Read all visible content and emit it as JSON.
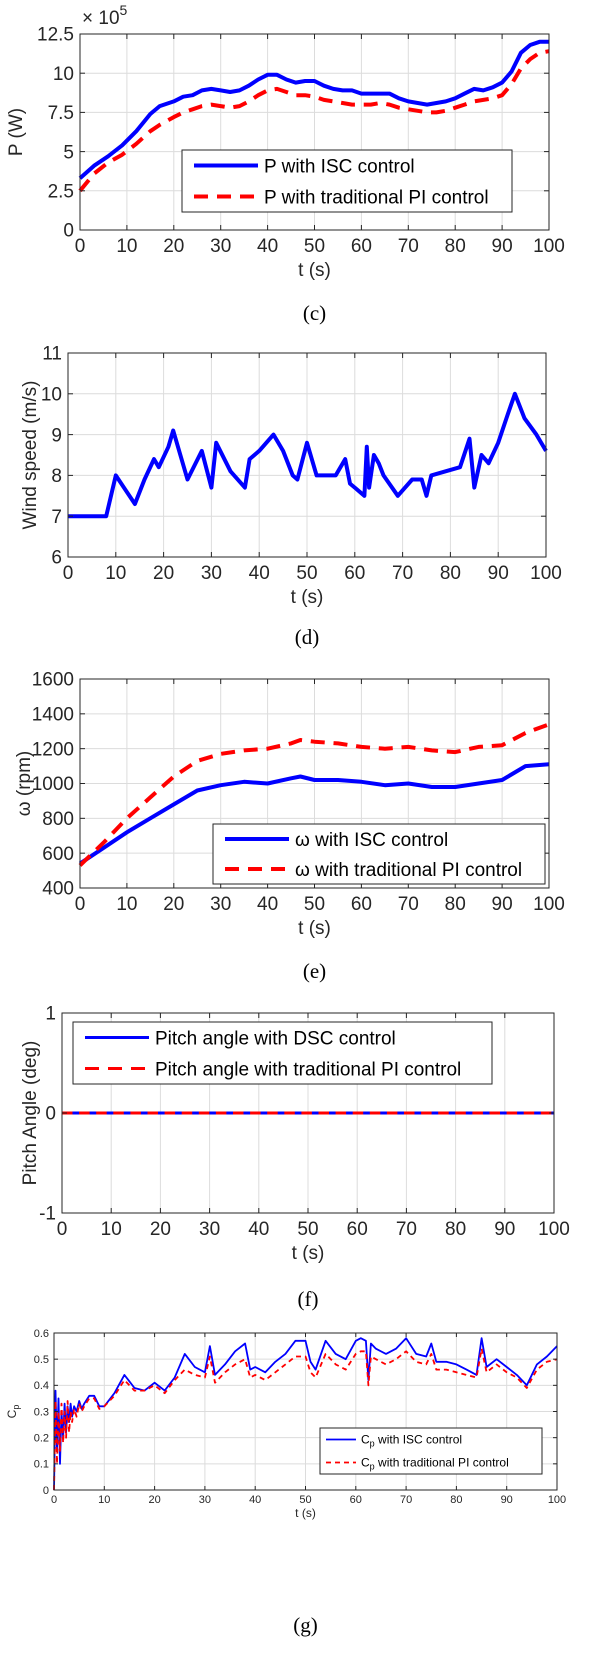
{
  "chart_data": [
    {
      "id": "c",
      "type": "line",
      "caption": "(c)",
      "xlabel": "t (s)",
      "ylabel": "P (W)",
      "y_multiplier_label": "× 10",
      "y_multiplier_exp": "5",
      "xlim": [
        0,
        100
      ],
      "ylim": [
        0,
        12.5
      ],
      "xticks": [
        0,
        10,
        20,
        30,
        40,
        50,
        60,
        70,
        80,
        90,
        100
      ],
      "yticks": [
        0,
        2.5,
        5,
        7.5,
        10,
        12.5
      ],
      "ytick_labels": [
        "0",
        "2.5",
        "5",
        "7.5",
        "10",
        "12.5"
      ],
      "grid": true,
      "legend_position": "lower-center",
      "series": [
        {
          "name": "P with ISC control",
          "color": "#0000ff",
          "dash": "solid",
          "x": [
            0,
            3,
            6,
            9,
            12,
            15,
            17,
            20,
            22,
            24,
            26,
            28,
            30,
            32,
            34,
            36,
            38,
            40,
            42,
            44,
            46,
            48,
            50,
            52,
            54,
            56,
            58,
            60,
            62,
            64,
            66,
            68,
            70,
            72,
            74,
            76,
            78,
            80,
            82,
            84,
            86,
            88,
            90,
            92,
            94,
            96,
            98,
            100
          ],
          "y": [
            3.3,
            4.1,
            4.7,
            5.4,
            6.3,
            7.4,
            7.9,
            8.2,
            8.5,
            8.6,
            8.9,
            9.0,
            8.9,
            8.8,
            8.9,
            9.2,
            9.6,
            9.9,
            9.9,
            9.6,
            9.4,
            9.5,
            9.5,
            9.2,
            9.0,
            8.9,
            8.9,
            8.7,
            8.7,
            8.7,
            8.7,
            8.4,
            8.2,
            8.1,
            8.0,
            8.1,
            8.2,
            8.4,
            8.7,
            9.0,
            8.9,
            9.1,
            9.4,
            10.1,
            11.3,
            11.8,
            12.0,
            12.0
          ]
        },
        {
          "name": "P with traditional PI control",
          "color": "#ff0000",
          "dash": "dashed",
          "x": [
            0,
            3,
            6,
            9,
            12,
            15,
            17,
            20,
            22,
            24,
            26,
            28,
            30,
            32,
            34,
            36,
            38,
            40,
            42,
            44,
            46,
            48,
            50,
            52,
            54,
            56,
            58,
            60,
            62,
            64,
            66,
            68,
            70,
            72,
            74,
            76,
            78,
            80,
            82,
            84,
            86,
            88,
            90,
            92,
            94,
            96,
            98,
            100
          ],
          "y": [
            2.5,
            3.6,
            4.3,
            4.8,
            5.5,
            6.3,
            6.7,
            7.2,
            7.5,
            7.7,
            7.9,
            8.0,
            7.9,
            7.8,
            7.9,
            8.2,
            8.6,
            8.9,
            9.0,
            8.8,
            8.6,
            8.6,
            8.5,
            8.3,
            8.2,
            8.1,
            8.0,
            8.0,
            8.0,
            8.1,
            8.0,
            7.8,
            7.7,
            7.6,
            7.5,
            7.5,
            7.6,
            7.8,
            8.0,
            8.2,
            8.3,
            8.4,
            8.6,
            9.3,
            10.3,
            10.9,
            11.3,
            11.4
          ]
        }
      ]
    },
    {
      "id": "d",
      "type": "line",
      "caption": "(d)",
      "xlabel": "t (s)",
      "ylabel": "Wind speed (m/s)",
      "xlim": [
        0,
        100
      ],
      "ylim": [
        6,
        11
      ],
      "xticks": [
        0,
        10,
        20,
        30,
        40,
        50,
        60,
        70,
        80,
        90,
        100
      ],
      "yticks": [
        6,
        7,
        8,
        9,
        10,
        11
      ],
      "ytick_labels": [
        "6",
        "7",
        "8",
        "9",
        "10",
        "11"
      ],
      "grid": true,
      "series": [
        {
          "name": "",
          "color": "#0000ff",
          "dash": "solid",
          "x": [
            0,
            8,
            10,
            14,
            16,
            18,
            19,
            21,
            22,
            25,
            28,
            30,
            31,
            34,
            37,
            38,
            40,
            43,
            45,
            47,
            48,
            50,
            52,
            53,
            56,
            58,
            59,
            60,
            62,
            62.5,
            63,
            64,
            65,
            66,
            69,
            72,
            74,
            75,
            76,
            79,
            82,
            84,
            85,
            86.5,
            88,
            90,
            92,
            93.5,
            95.5,
            98,
            100
          ],
          "y": [
            7.0,
            7.0,
            8.0,
            7.3,
            7.9,
            8.4,
            8.2,
            8.7,
            9.1,
            7.9,
            8.6,
            7.7,
            8.8,
            8.1,
            7.7,
            8.4,
            8.6,
            9.0,
            8.6,
            8.0,
            7.9,
            8.8,
            8.0,
            8.0,
            8.0,
            8.4,
            7.8,
            7.7,
            7.5,
            8.7,
            7.7,
            8.5,
            8.3,
            8.0,
            7.5,
            7.9,
            7.9,
            7.5,
            8.0,
            8.1,
            8.2,
            8.9,
            7.7,
            8.5,
            8.3,
            8.8,
            9.5,
            10.0,
            9.4,
            9.0,
            8.6
          ]
        }
      ]
    },
    {
      "id": "e",
      "type": "line",
      "caption": "(e)",
      "xlabel": "t (s)",
      "ylabel": "ω (rpm)",
      "xlim": [
        0,
        100
      ],
      "ylim": [
        400,
        1600
      ],
      "xticks": [
        0,
        10,
        20,
        30,
        40,
        50,
        60,
        70,
        80,
        90,
        100
      ],
      "yticks": [
        400,
        600,
        800,
        1000,
        1200,
        1400,
        1600
      ],
      "ytick_labels": [
        "400",
        "600",
        "800",
        "1000",
        "1200",
        "1400",
        "1600"
      ],
      "grid": true,
      "legend_position": "lower-right",
      "series": [
        {
          "name": "ω with ISC control",
          "color": "#0000ff",
          "dash": "solid",
          "x": [
            0,
            5,
            10,
            15,
            20,
            25,
            30,
            35,
            40,
            45,
            47,
            50,
            55,
            60,
            65,
            70,
            75,
            80,
            85,
            90,
            95,
            100
          ],
          "y": [
            540,
            630,
            720,
            800,
            880,
            960,
            990,
            1010,
            1000,
            1030,
            1040,
            1020,
            1020,
            1010,
            990,
            1000,
            980,
            980,
            1000,
            1020,
            1100,
            1110
          ]
        },
        {
          "name": "ω with traditional PI control",
          "color": "#ff0000",
          "dash": "dashed",
          "x": [
            0,
            5,
            10,
            15,
            20,
            25,
            30,
            35,
            40,
            45,
            47,
            50,
            55,
            60,
            65,
            70,
            75,
            80,
            85,
            90,
            95,
            100
          ],
          "y": [
            530,
            660,
            800,
            920,
            1040,
            1130,
            1170,
            1190,
            1200,
            1230,
            1250,
            1240,
            1230,
            1210,
            1200,
            1210,
            1190,
            1180,
            1210,
            1220,
            1290,
            1340
          ]
        }
      ]
    },
    {
      "id": "f",
      "type": "line",
      "caption": "(f)",
      "xlabel": "t (s)",
      "ylabel": "Pitch Angle (deg)",
      "xlim": [
        0,
        100
      ],
      "ylim": [
        -1,
        1
      ],
      "xticks": [
        0,
        10,
        20,
        30,
        40,
        50,
        60,
        70,
        80,
        90,
        100
      ],
      "yticks": [
        -1,
        0,
        1
      ],
      "ytick_labels": [
        "-1",
        "0",
        "1"
      ],
      "grid": true,
      "legend_position": "top-left",
      "series": [
        {
          "name": "Pitch angle with DSC control",
          "color": "#0000ff",
          "dash": "solid",
          "x": [
            0,
            100
          ],
          "y": [
            0,
            0
          ]
        },
        {
          "name": "Pitch angle with traditional PI control",
          "color": "#ff0000",
          "dash": "dashed",
          "x": [
            0,
            100
          ],
          "y": [
            0,
            0
          ]
        }
      ]
    },
    {
      "id": "g",
      "type": "line",
      "caption": "(g)",
      "xlabel": "t (s)",
      "ylabel_main": "C",
      "ylabel_sub": "p",
      "xlim": [
        0,
        100
      ],
      "ylim": [
        0,
        0.6
      ],
      "xticks": [
        0,
        10,
        20,
        30,
        40,
        50,
        60,
        70,
        80,
        90,
        100
      ],
      "yticks": [
        0,
        0.1,
        0.2,
        0.3,
        0.4,
        0.5,
        0.6
      ],
      "ytick_labels": [
        "0",
        "0.1",
        "0.2",
        "0.3",
        "0.4",
        "0.5",
        "0.6"
      ],
      "grid": true,
      "legend_position": "lower-right",
      "series": [
        {
          "name": "with ISC control",
          "name_main": "C",
          "name_sub": "p",
          "color": "#0000ff",
          "dash": "solid",
          "x": [
            0,
            0.3,
            0.6,
            0.9,
            1.2,
            1.5,
            1.8,
            2.1,
            2.4,
            2.7,
            3,
            3.3,
            3.6,
            4,
            4.5,
            5,
            5.5,
            6,
            7,
            8,
            9,
            10,
            12,
            14,
            16,
            18,
            20,
            22,
            24,
            26,
            28,
            30,
            31,
            32,
            34,
            36,
            38,
            39,
            40,
            42,
            44,
            46,
            48,
            50,
            51,
            52,
            54,
            56,
            58,
            60,
            61,
            62,
            62.5,
            63,
            64,
            66,
            68,
            70,
            72,
            74,
            75,
            76,
            78,
            80,
            82,
            84,
            85,
            86,
            88,
            90,
            92,
            94,
            96,
            98,
            100
          ],
          "y": [
            0,
            0.38,
            0.15,
            0.35,
            0.1,
            0.3,
            0.2,
            0.33,
            0.22,
            0.32,
            0.26,
            0.33,
            0.28,
            0.32,
            0.3,
            0.34,
            0.31,
            0.33,
            0.36,
            0.36,
            0.32,
            0.32,
            0.37,
            0.44,
            0.39,
            0.38,
            0.41,
            0.38,
            0.43,
            0.52,
            0.47,
            0.45,
            0.55,
            0.44,
            0.48,
            0.53,
            0.56,
            0.46,
            0.47,
            0.45,
            0.49,
            0.52,
            0.57,
            0.57,
            0.49,
            0.46,
            0.57,
            0.52,
            0.5,
            0.57,
            0.58,
            0.57,
            0.42,
            0.56,
            0.54,
            0.52,
            0.54,
            0.58,
            0.52,
            0.51,
            0.56,
            0.49,
            0.49,
            0.48,
            0.46,
            0.44,
            0.58,
            0.47,
            0.5,
            0.47,
            0.44,
            0.4,
            0.48,
            0.51,
            0.55
          ]
        },
        {
          "name": "with traditional PI control",
          "name_main": "C",
          "name_sub": "p",
          "color": "#ff0000",
          "dash": "dashed",
          "x": [
            0,
            0.3,
            0.6,
            0.9,
            1.2,
            1.5,
            1.8,
            2.1,
            2.4,
            2.7,
            3,
            3.3,
            3.6,
            4,
            4.5,
            5,
            5.5,
            6,
            7,
            8,
            9,
            10,
            12,
            14,
            16,
            18,
            20,
            22,
            24,
            26,
            28,
            30,
            31,
            32,
            34,
            36,
            38,
            39,
            40,
            42,
            44,
            46,
            48,
            50,
            51,
            52,
            54,
            56,
            58,
            60,
            61,
            62,
            62.5,
            63,
            64,
            66,
            68,
            70,
            72,
            74,
            75,
            76,
            78,
            80,
            82,
            84,
            85,
            86,
            88,
            90,
            92,
            94,
            96,
            98,
            100
          ],
          "y": [
            0,
            0.34,
            0.1,
            0.3,
            0.15,
            0.33,
            0.18,
            0.3,
            0.2,
            0.34,
            0.22,
            0.3,
            0.26,
            0.31,
            0.28,
            0.33,
            0.3,
            0.32,
            0.35,
            0.35,
            0.31,
            0.32,
            0.36,
            0.42,
            0.38,
            0.38,
            0.4,
            0.37,
            0.42,
            0.46,
            0.44,
            0.43,
            0.51,
            0.41,
            0.45,
            0.48,
            0.5,
            0.43,
            0.44,
            0.42,
            0.45,
            0.48,
            0.51,
            0.51,
            0.45,
            0.43,
            0.52,
            0.48,
            0.46,
            0.52,
            0.53,
            0.53,
            0.4,
            0.51,
            0.5,
            0.48,
            0.5,
            0.53,
            0.49,
            0.48,
            0.52,
            0.46,
            0.46,
            0.45,
            0.44,
            0.43,
            0.54,
            0.45,
            0.48,
            0.45,
            0.43,
            0.39,
            0.46,
            0.49,
            0.5
          ]
        }
      ]
    }
  ]
}
